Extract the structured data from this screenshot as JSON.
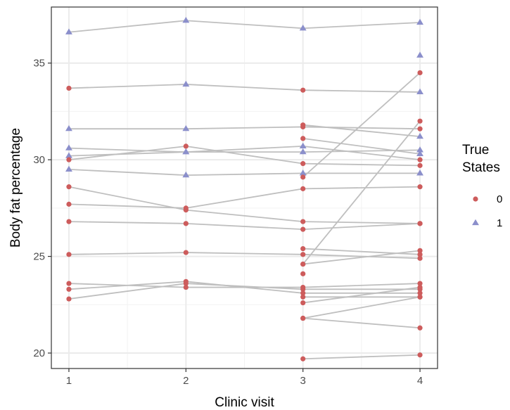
{
  "chart_data": {
    "type": "scatter",
    "xlabel": "Clinic visit",
    "ylabel": "Body fat percentage",
    "xlim": [
      0.85,
      4.15
    ],
    "ylim": [
      19.2,
      37.9
    ],
    "x_ticks": [
      1,
      2,
      3,
      4
    ],
    "x_tick_labels": [
      "1",
      "2",
      "3",
      "4"
    ],
    "y_ticks": [
      20,
      25,
      30,
      35
    ],
    "y_tick_labels": [
      "20",
      "25",
      "30",
      "35"
    ],
    "grid": true,
    "legend": {
      "title_lines": [
        "True",
        "States"
      ],
      "placement": "right",
      "entries": [
        {
          "label": "0",
          "shape": "circle",
          "color": "#cd5c5c"
        },
        {
          "label": "1",
          "shape": "triangle",
          "color": "#8b8fcb"
        }
      ]
    },
    "colors": {
      "state0": "#cd5c5c",
      "state1": "#8b8fcb",
      "line": "#bfbfbf"
    },
    "subjects": [
      {
        "x": [
          1,
          2,
          3,
          4
        ],
        "y": [
          36.6,
          37.2,
          36.8,
          37.1
        ],
        "states": [
          1,
          1,
          1,
          1
        ]
      },
      {
        "x": [
          1,
          2,
          3,
          4
        ],
        "y": [
          33.7,
          33.9,
          33.6,
          33.5
        ],
        "states": [
          0,
          1,
          0,
          1
        ]
      },
      {
        "x": [
          1,
          2,
          3,
          4
        ],
        "y": [
          31.6,
          31.6,
          31.7,
          31.6
        ],
        "states": [
          1,
          1,
          0,
          0
        ]
      },
      {
        "x": [
          1,
          2,
          3,
          4
        ],
        "y": [
          30.6,
          30.4,
          30.7,
          30.0
        ],
        "states": [
          1,
          1,
          1,
          0
        ]
      },
      {
        "x": [
          1,
          2,
          3,
          4
        ],
        "y": [
          30.2,
          30.4,
          30.4,
          30.5
        ],
        "states": [
          1,
          1,
          1,
          1
        ]
      },
      {
        "x": [
          1,
          2,
          3,
          4
        ],
        "y": [
          30.0,
          30.7,
          29.8,
          29.7
        ],
        "states": [
          0,
          0,
          0,
          0
        ]
      },
      {
        "x": [
          1,
          2,
          3,
          4
        ],
        "y": [
          29.5,
          29.2,
          29.3,
          29.3
        ],
        "states": [
          1,
          1,
          1,
          1
        ]
      },
      {
        "x": [
          1,
          2,
          3,
          4
        ],
        "y": [
          28.6,
          27.4,
          26.8,
          26.7
        ],
        "states": [
          0,
          0,
          0,
          0
        ]
      },
      {
        "x": [
          1,
          2,
          3,
          4
        ],
        "y": [
          27.7,
          27.5,
          28.5,
          28.6
        ],
        "states": [
          0,
          0,
          0,
          0
        ]
      },
      {
        "x": [
          1,
          2,
          3,
          4
        ],
        "y": [
          26.8,
          26.7,
          26.4,
          26.7
        ],
        "states": [
          0,
          0,
          0,
          0
        ]
      },
      {
        "x": [
          1,
          2,
          3,
          4
        ],
        "y": [
          25.1,
          25.2,
          25.1,
          24.9
        ],
        "states": [
          0,
          0,
          0,
          0
        ]
      },
      {
        "x": [
          1,
          2,
          3,
          4
        ],
        "y": [
          23.6,
          23.4,
          23.4,
          23.6
        ],
        "states": [
          0,
          0,
          0,
          0
        ]
      },
      {
        "x": [
          1,
          2,
          3,
          4
        ],
        "y": [
          23.3,
          23.7,
          23.1,
          23.1
        ],
        "states": [
          0,
          0,
          0,
          0
        ]
      },
      {
        "x": [
          1,
          2,
          3,
          4
        ],
        "y": [
          22.8,
          23.6,
          23.3,
          23.3
        ],
        "states": [
          0,
          0,
          0,
          0
        ]
      },
      {
        "x": [
          3,
          4
        ],
        "y": [
          29.1,
          34.5
        ],
        "states": [
          0,
          0
        ]
      },
      {
        "x": [
          3,
          4
        ],
        "y": [
          24.6,
          32.0
        ],
        "states": [
          0,
          0
        ]
      },
      {
        "x": [
          3,
          4
        ],
        "y": [
          31.8,
          31.2
        ],
        "states": [
          0,
          1
        ]
      },
      {
        "x": [
          3,
          4
        ],
        "y": [
          31.1,
          30.3
        ],
        "states": [
          0,
          1
        ]
      },
      {
        "x": [
          3,
          4
        ],
        "y": [
          25.4,
          25.1
        ],
        "states": [
          0,
          0
        ]
      },
      {
        "x": [
          3,
          4
        ],
        "y": [
          24.6,
          25.3
        ],
        "states": [
          0,
          0
        ]
      },
      {
        "x": [
          3,
          4
        ],
        "y": [
          22.9,
          22.9
        ],
        "states": [
          0,
          0
        ]
      },
      {
        "x": [
          3,
          4
        ],
        "y": [
          22.6,
          23.4
        ],
        "states": [
          0,
          0
        ]
      },
      {
        "x": [
          3,
          4
        ],
        "y": [
          21.8,
          22.9
        ],
        "states": [
          0,
          0
        ]
      },
      {
        "x": [
          3,
          4
        ],
        "y": [
          21.8,
          21.3
        ],
        "states": [
          0,
          0
        ]
      },
      {
        "x": [
          3,
          4
        ],
        "y": [
          19.7,
          19.9
        ],
        "states": [
          0,
          0
        ]
      }
    ],
    "extra_points": [
      {
        "x": 3,
        "y": 24.1,
        "state": 0
      },
      {
        "x": 4,
        "y": 35.4,
        "state": 1
      }
    ]
  }
}
